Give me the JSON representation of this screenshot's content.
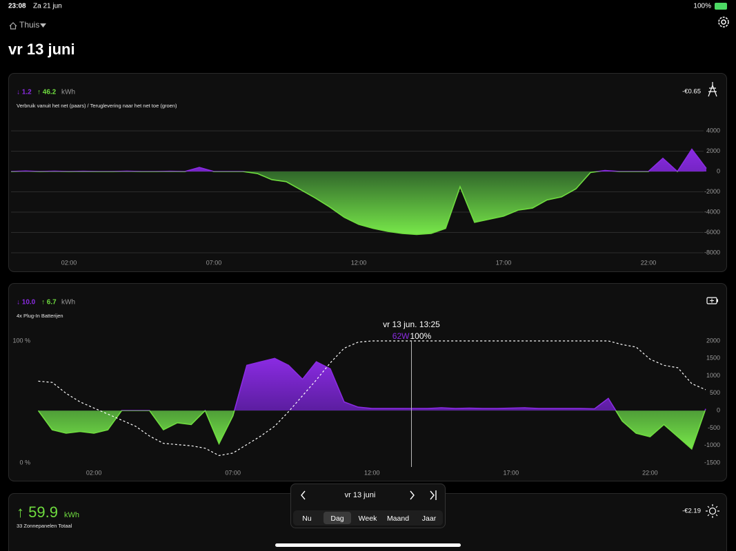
{
  "status_bar": {
    "time": "23:08",
    "date": "Za 21 jun",
    "battery": "100%"
  },
  "header": {
    "location": "Thuis",
    "title": "vr 13 juni"
  },
  "grid_card": {
    "summary_in": "↓ 1.2",
    "summary_out": "↑ 46.2",
    "unit": "kWh",
    "subtitle": "Verbruik vanuit het net (paars) / Teruglevering naar het net toe (groen)",
    "cost": "-€0.65"
  },
  "battery_card": {
    "summary_in": "↓ 10.0",
    "summary_out": "↑ 6.7",
    "unit": "kWh",
    "subtitle": "4x Plug-In Batterijen"
  },
  "solar_card": {
    "total": "↑ 59.9",
    "unit": "kWh",
    "subtitle": "33 Zonnepanelen Totaal",
    "cost": "-€2.19"
  },
  "date_picker": {
    "date": "vr 13 juni",
    "periods": [
      "Nu",
      "Dag",
      "Week",
      "Maand",
      "Jaar"
    ],
    "selected": 1
  },
  "chart_data": [
    {
      "type": "area",
      "xlim": [
        0,
        24
      ],
      "xticks": [
        {
          "value": 2,
          "label": "02:00"
        },
        {
          "value": 7,
          "label": "07:00"
        },
        {
          "value": 12,
          "label": "12:00"
        },
        {
          "value": 17,
          "label": "17:00"
        },
        {
          "value": 22,
          "label": "22:00"
        }
      ],
      "ylim": [
        -8000,
        4000
      ],
      "yticks": [
        4000,
        2000,
        0,
        -2000,
        -4000,
        -6000,
        -8000
      ],
      "grid": true,
      "x": [
        0,
        0.5,
        1,
        1.5,
        2,
        2.5,
        3,
        3.5,
        4,
        4.5,
        5,
        5.5,
        6,
        6.5,
        7,
        7.5,
        8,
        8.5,
        9,
        9.5,
        10,
        10.5,
        11,
        11.5,
        12,
        12.5,
        13,
        13.5,
        14,
        14.5,
        15,
        15.5,
        16,
        16.5,
        17,
        17.5,
        18,
        18.5,
        19,
        19.5,
        20,
        20.5,
        21,
        21.5,
        22,
        22.5,
        23,
        23.5,
        24
      ],
      "series": [
        {
          "positive_color": "#8a2be2",
          "negative_color": "#6fdc3f",
          "values": [
            0,
            50,
            0,
            30,
            0,
            20,
            0,
            0,
            30,
            0,
            0,
            20,
            0,
            400,
            0,
            0,
            0,
            -200,
            -800,
            -1000,
            -1800,
            -2600,
            -3500,
            -4500,
            -5200,
            -5600,
            -5900,
            -6100,
            -6200,
            -6100,
            -5600,
            -1500,
            -5000,
            -4700,
            -4400,
            -3800,
            -3600,
            -2800,
            -2500,
            -1700,
            -100,
            100,
            0,
            0,
            0,
            1300,
            0,
            2200,
            300
          ]
        }
      ]
    },
    {
      "type": "area",
      "xlim": [
        0,
        24
      ],
      "xticks": [
        {
          "value": 2,
          "label": "02:00"
        },
        {
          "value": 7,
          "label": "07:00"
        },
        {
          "value": 12,
          "label": "12:00"
        },
        {
          "value": 17,
          "label": "17:00"
        },
        {
          "value": 22,
          "label": "22:00"
        }
      ],
      "ylim": [
        -1500,
        2000
      ],
      "yticks": [
        2000,
        1500,
        1000,
        500,
        0,
        -500,
        -1000,
        -1500
      ],
      "y2lim": [
        0,
        100
      ],
      "y2ticks": [
        {
          "value": 100,
          "label": "100 %"
        },
        {
          "value": 0,
          "label": "0 %"
        }
      ],
      "grid": false,
      "x": [
        0,
        0.5,
        1,
        1.5,
        2,
        2.5,
        3,
        3.5,
        4,
        4.5,
        5,
        5.5,
        6,
        6.5,
        7,
        7.5,
        8,
        8.5,
        9,
        9.5,
        10,
        10.5,
        11,
        11.5,
        12,
        12.5,
        13,
        13.5,
        14,
        14.5,
        15,
        15.5,
        16,
        16.5,
        17,
        17.5,
        18,
        18.5,
        19,
        19.5,
        20,
        20.5,
        21,
        21.5,
        22,
        22.5,
        23,
        23.5,
        24
      ],
      "series": [
        {
          "positive_color": "#8a2be2",
          "negative_color": "#6fdc3f",
          "values": [
            0,
            -550,
            -650,
            -600,
            -650,
            -550,
            0,
            0,
            0,
            -550,
            -350,
            -400,
            0,
            -950,
            -150,
            1300,
            1400,
            1500,
            1300,
            900,
            1400,
            1200,
            250,
            100,
            60,
            60,
            60,
            62,
            60,
            80,
            60,
            70,
            60,
            60,
            70,
            80,
            60,
            60,
            60,
            60,
            50,
            350,
            -300,
            -650,
            -750,
            -400,
            -750,
            -1100,
            50
          ]
        },
        {
          "axis": "y2",
          "color": "#ffffff",
          "dashed": true,
          "values": [
            67,
            66,
            57,
            50,
            45,
            40,
            35,
            30,
            22,
            16,
            15,
            14,
            12,
            6,
            8,
            15,
            22,
            30,
            42,
            55,
            68,
            82,
            94,
            99,
            100,
            100,
            100,
            100,
            100,
            100,
            100,
            100,
            100,
            100,
            100,
            100,
            100,
            100,
            100,
            100,
            100,
            100,
            97,
            95,
            85,
            80,
            78,
            65,
            60
          ]
        }
      ],
      "tooltip": {
        "x": 13.42,
        "title": "vr 13 jun. 13:25",
        "power": "62W",
        "soc": "100%"
      }
    }
  ]
}
